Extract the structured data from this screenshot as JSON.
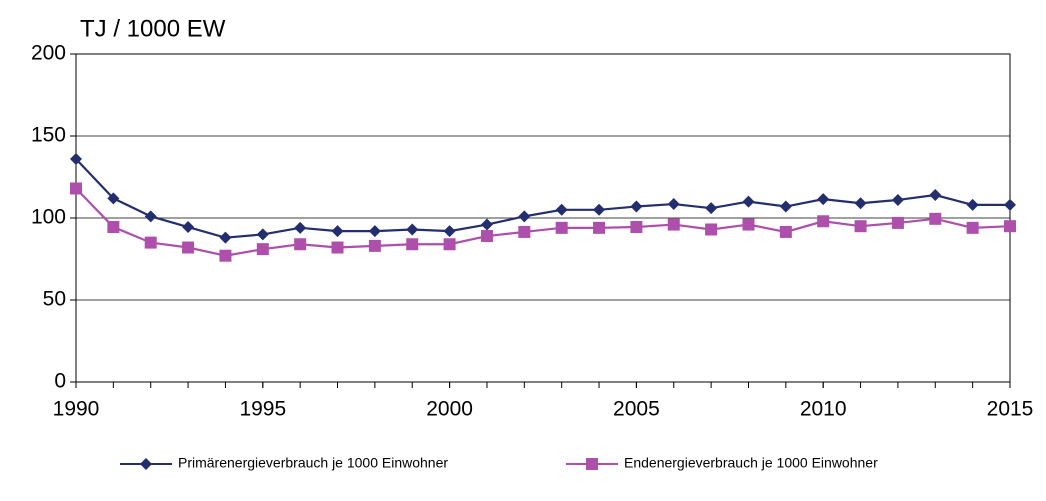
{
  "chart_data": {
    "type": "line",
    "y_label": "TJ / 1000 EW",
    "x": [
      1990,
      1991,
      1992,
      1993,
      1994,
      1995,
      1996,
      1997,
      1998,
      1999,
      2000,
      2001,
      2002,
      2003,
      2004,
      2005,
      2006,
      2007,
      2008,
      2009,
      2010,
      2011,
      2012,
      2013,
      2014,
      2015
    ],
    "series": [
      {
        "name": "Primärenergieverbrauch je 1000 Einwohner",
        "color": "#232e6e",
        "marker": "diamond",
        "values": [
          136,
          112,
          101,
          94.5,
          88,
          90,
          94,
          92,
          92,
          93,
          92,
          96,
          101,
          105,
          105,
          107,
          108.5,
          106,
          110,
          107,
          111.5,
          109,
          111,
          114,
          108,
          108
        ]
      },
      {
        "name": "Endenergieverbrauch je 1000 Einwohner",
        "color": "#ad4fab",
        "marker": "square",
        "values": [
          118,
          94.5,
          85,
          82,
          77,
          81,
          84,
          82,
          83,
          84,
          84,
          89,
          91.5,
          94,
          94,
          94.5,
          96,
          93,
          96,
          91.5,
          98,
          95,
          97,
          99.5,
          94,
          95
        ]
      }
    ],
    "xlim": [
      1990,
      2015
    ],
    "xticks": [
      1990,
      1995,
      2000,
      2005,
      2010,
      2015
    ],
    "ylim": [
      0,
      200
    ],
    "yticks": [
      0,
      50,
      100,
      150,
      200
    ],
    "grid": true,
    "legend": "bottom"
  }
}
